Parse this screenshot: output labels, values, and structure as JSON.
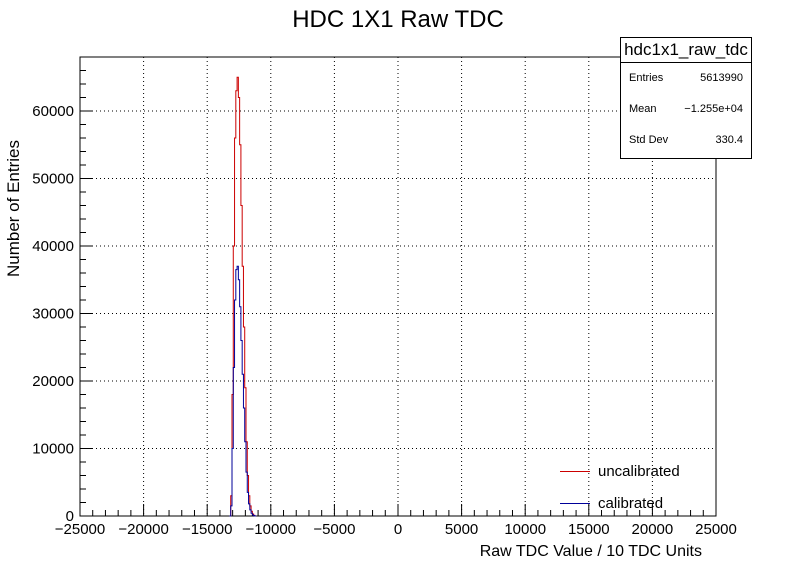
{
  "chart_data": {
    "type": "line",
    "title": "HDC 1X1 Raw TDC",
    "xlabel": "Raw TDC Value / 10 TDC Units",
    "ylabel": "Number of Entries",
    "xlim": [
      -25000,
      25000
    ],
    "ylim": [
      0,
      68000
    ],
    "xticks": [
      -25000,
      -20000,
      -15000,
      -10000,
      -5000,
      0,
      5000,
      10000,
      15000,
      20000,
      25000
    ],
    "yticks": [
      0,
      10000,
      20000,
      30000,
      40000,
      50000,
      60000
    ],
    "xtick_labels": [
      "−25000",
      "−20000",
      "−15000",
      "−10000",
      "−5000",
      "0",
      "5000",
      "10000",
      "15000",
      "20000",
      "25000"
    ],
    "ytick_labels": [
      "0",
      "10000",
      "20000",
      "30000",
      "40000",
      "50000",
      "60000"
    ],
    "grid": true,
    "legend_position": "bottom-right",
    "series": [
      {
        "name": "uncalibrated",
        "color": "#cc0000",
        "x": [
          -13200,
          -13100,
          -13000,
          -12900,
          -12800,
          -12700,
          -12600,
          -12500,
          -12400,
          -12300,
          -12200,
          -12100,
          -12000,
          -11900,
          -11800,
          -11700,
          -11600,
          -11500,
          -11400,
          -11300,
          -11200
        ],
        "y": [
          0,
          3000,
          18000,
          40000,
          56000,
          63000,
          65000,
          62000,
          55000,
          46000,
          37000,
          28000,
          19000,
          11000,
          6000,
          3000,
          1500,
          700,
          300,
          100,
          0
        ]
      },
      {
        "name": "calibrated",
        "color": "#000099",
        "x": [
          -13200,
          -13100,
          -13000,
          -12900,
          -12800,
          -12700,
          -12600,
          -12500,
          -12400,
          -12300,
          -12200,
          -12100,
          -12000,
          -11900,
          -11800,
          -11700,
          -11600,
          -11500,
          -11400,
          -11300,
          -11200
        ],
        "y": [
          0,
          1500,
          10000,
          22000,
          32000,
          36500,
          37000,
          35000,
          31000,
          26000,
          21000,
          16000,
          11000,
          6500,
          3500,
          1800,
          900,
          400,
          150,
          50,
          0
        ]
      }
    ],
    "stats": {
      "name": "hdc1x1_raw_tdc",
      "entries_label": "Entries",
      "entries": "5613990",
      "mean_label": "Mean",
      "mean": "−1.255e+04",
      "stddev_label": "Std Dev",
      "stddev": "330.4"
    }
  }
}
